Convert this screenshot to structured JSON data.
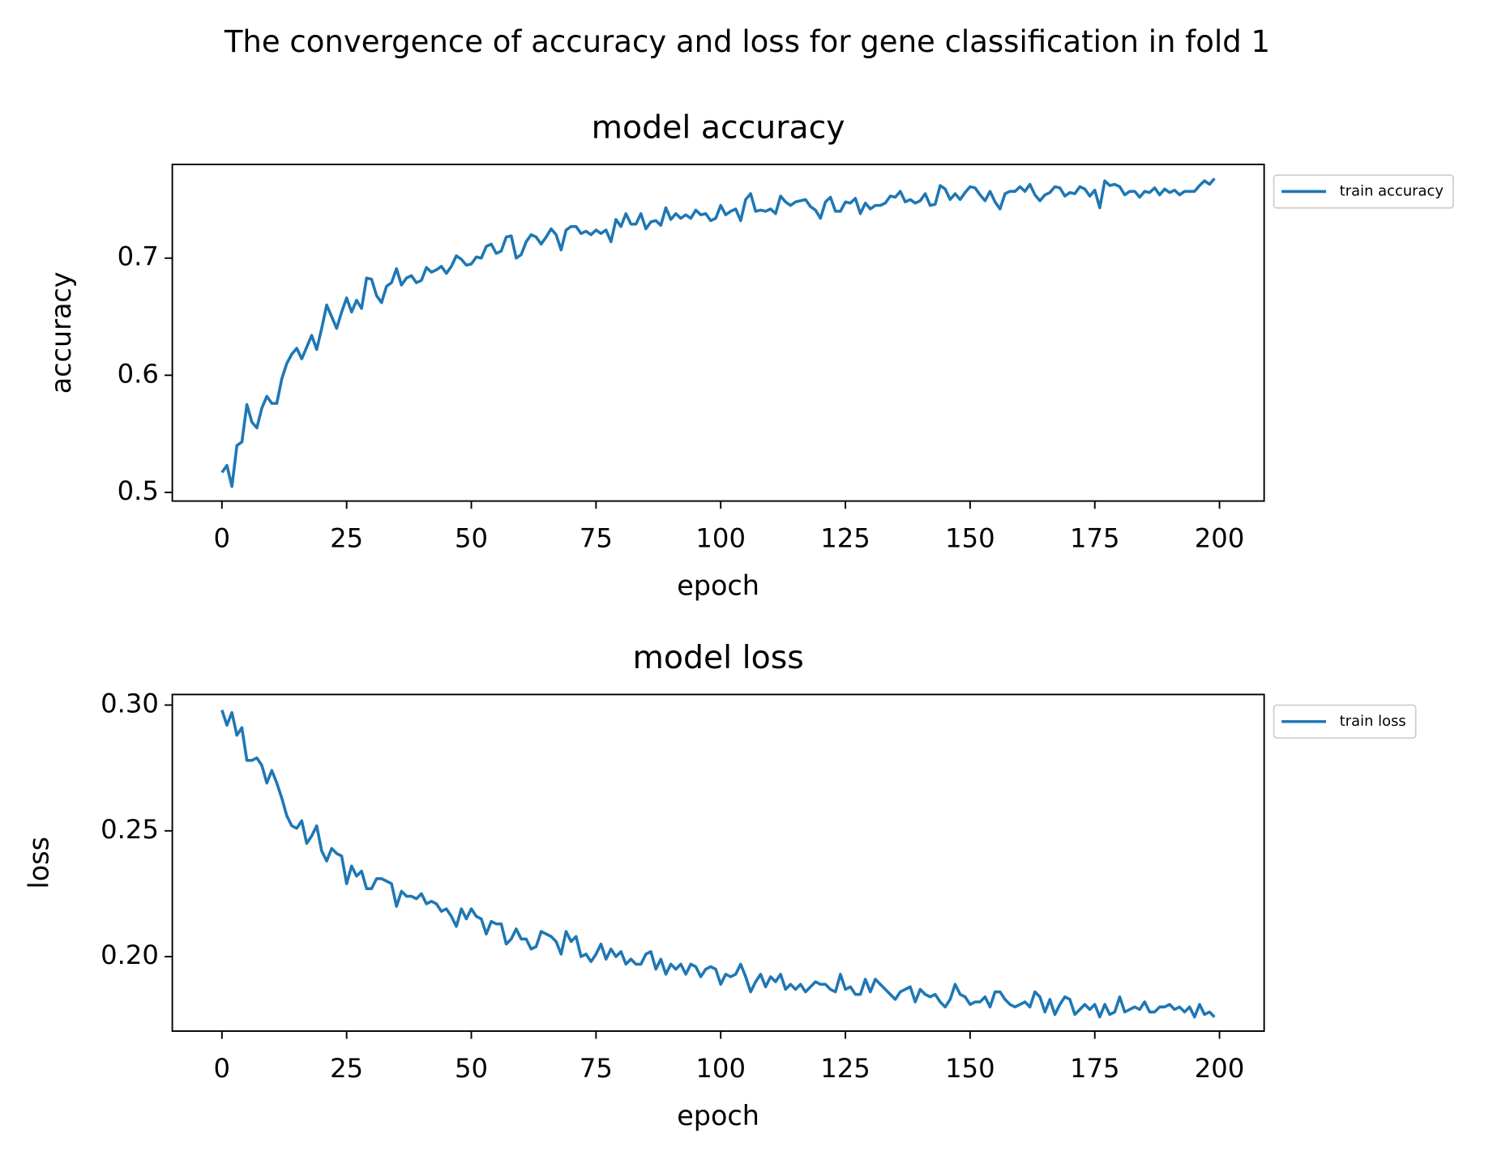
{
  "title": "The convergence of accuracy and loss for gene classification in fold 1",
  "chart_data": [
    {
      "type": "line",
      "title": "model accuracy",
      "xlabel": "epoch",
      "ylabel": "accuracy",
      "x": [
        0,
        1,
        2,
        3,
        4,
        5,
        6,
        7,
        8,
        9,
        10,
        11,
        12,
        13,
        14,
        15,
        16,
        17,
        18,
        19,
        20,
        21,
        22,
        23,
        24,
        25,
        26,
        27,
        28,
        29,
        30,
        31,
        32,
        33,
        34,
        35,
        36,
        37,
        38,
        39,
        40,
        41,
        42,
        43,
        44,
        45,
        46,
        47,
        48,
        49,
        50,
        51,
        52,
        53,
        54,
        55,
        56,
        57,
        58,
        59,
        60,
        61,
        62,
        63,
        64,
        65,
        66,
        67,
        68,
        69,
        70,
        71,
        72,
        73,
        74,
        75,
        76,
        77,
        78,
        79,
        80,
        81,
        82,
        83,
        84,
        85,
        86,
        87,
        88,
        89,
        90,
        91,
        92,
        93,
        94,
        95,
        96,
        97,
        98,
        99,
        100,
        101,
        102,
        103,
        104,
        105,
        106,
        107,
        108,
        109,
        110,
        111,
        112,
        113,
        114,
        115,
        116,
        117,
        118,
        119,
        120,
        121,
        122,
        123,
        124,
        125,
        126,
        127,
        128,
        129,
        130,
        131,
        132,
        133,
        134,
        135,
        136,
        137,
        138,
        139,
        140,
        141,
        142,
        143,
        144,
        145,
        146,
        147,
        148,
        149,
        150,
        151,
        152,
        153,
        154,
        155,
        156,
        157,
        158,
        159,
        160,
        161,
        162,
        163,
        164,
        165,
        166,
        167,
        168,
        169,
        170,
        171,
        172,
        173,
        174,
        175,
        176,
        177,
        178,
        179,
        180,
        181,
        182,
        183,
        184,
        185,
        186,
        187,
        188,
        189,
        190,
        191,
        192,
        193,
        194,
        195,
        196,
        197,
        198,
        199
      ],
      "series": [
        {
          "name": "train accuracy",
          "color": "#1f77b4",
          "values": [
            0.517,
            0.523,
            0.505,
            0.54,
            0.543,
            0.575,
            0.56,
            0.555,
            0.572,
            0.582,
            0.576,
            0.576,
            0.597,
            0.61,
            0.618,
            0.623,
            0.614,
            0.624,
            0.634,
            0.622,
            0.64,
            0.66,
            0.65,
            0.64,
            0.654,
            0.666,
            0.654,
            0.664,
            0.657,
            0.683,
            0.682,
            0.668,
            0.662,
            0.676,
            0.679,
            0.691,
            0.677,
            0.683,
            0.685,
            0.679,
            0.681,
            0.692,
            0.688,
            0.69,
            0.693,
            0.687,
            0.693,
            0.702,
            0.699,
            0.694,
            0.695,
            0.701,
            0.7,
            0.71,
            0.712,
            0.704,
            0.706,
            0.718,
            0.719,
            0.7,
            0.703,
            0.714,
            0.72,
            0.718,
            0.712,
            0.718,
            0.725,
            0.72,
            0.707,
            0.724,
            0.727,
            0.727,
            0.721,
            0.723,
            0.72,
            0.724,
            0.721,
            0.724,
            0.714,
            0.733,
            0.727,
            0.738,
            0.729,
            0.729,
            0.738,
            0.725,
            0.731,
            0.732,
            0.728,
            0.743,
            0.733,
            0.738,
            0.734,
            0.737,
            0.734,
            0.741,
            0.737,
            0.738,
            0.732,
            0.734,
            0.745,
            0.737,
            0.74,
            0.742,
            0.732,
            0.75,
            0.755,
            0.74,
            0.741,
            0.74,
            0.742,
            0.738,
            0.753,
            0.748,
            0.745,
            0.748,
            0.749,
            0.75,
            0.744,
            0.741,
            0.734,
            0.748,
            0.752,
            0.74,
            0.74,
            0.748,
            0.747,
            0.751,
            0.738,
            0.747,
            0.742,
            0.745,
            0.745,
            0.747,
            0.753,
            0.752,
            0.757,
            0.748,
            0.75,
            0.747,
            0.749,
            0.755,
            0.745,
            0.746,
            0.762,
            0.759,
            0.75,
            0.755,
            0.75,
            0.756,
            0.761,
            0.76,
            0.754,
            0.749,
            0.757,
            0.748,
            0.742,
            0.755,
            0.757,
            0.757,
            0.761,
            0.757,
            0.763,
            0.754,
            0.749,
            0.754,
            0.756,
            0.761,
            0.76,
            0.753,
            0.756,
            0.755,
            0.761,
            0.759,
            0.753,
            0.758,
            0.743,
            0.766,
            0.762,
            0.763,
            0.761,
            0.754,
            0.757,
            0.757,
            0.752,
            0.757,
            0.756,
            0.76,
            0.754,
            0.759,
            0.756,
            0.758,
            0.754,
            0.757,
            0.757,
            0.757,
            0.762,
            0.766,
            0.763,
            0.768
          ]
        }
      ],
      "xlim": [
        -9.95,
        208.95
      ],
      "xticks": [
        0,
        25,
        50,
        75,
        100,
        125,
        150,
        175,
        200
      ],
      "ylim": [
        0.4926,
        0.78
      ],
      "yticks": [
        0.5,
        0.6,
        0.7
      ],
      "legend": "outside upper right",
      "grid": false
    },
    {
      "type": "line",
      "title": "model loss",
      "xlabel": "epoch",
      "ylabel": "loss",
      "x": [
        0,
        1,
        2,
        3,
        4,
        5,
        6,
        7,
        8,
        9,
        10,
        11,
        12,
        13,
        14,
        15,
        16,
        17,
        18,
        19,
        20,
        21,
        22,
        23,
        24,
        25,
        26,
        27,
        28,
        29,
        30,
        31,
        32,
        33,
        34,
        35,
        36,
        37,
        38,
        39,
        40,
        41,
        42,
        43,
        44,
        45,
        46,
        47,
        48,
        49,
        50,
        51,
        52,
        53,
        54,
        55,
        56,
        57,
        58,
        59,
        60,
        61,
        62,
        63,
        64,
        65,
        66,
        67,
        68,
        69,
        70,
        71,
        72,
        73,
        74,
        75,
        76,
        77,
        78,
        79,
        80,
        81,
        82,
        83,
        84,
        85,
        86,
        87,
        88,
        89,
        90,
        91,
        92,
        93,
        94,
        95,
        96,
        97,
        98,
        99,
        100,
        101,
        102,
        103,
        104,
        105,
        106,
        107,
        108,
        109,
        110,
        111,
        112,
        113,
        114,
        115,
        116,
        117,
        118,
        119,
        120,
        121,
        122,
        123,
        124,
        125,
        126,
        127,
        128,
        129,
        130,
        131,
        132,
        133,
        134,
        135,
        136,
        137,
        138,
        139,
        140,
        141,
        142,
        143,
        144,
        145,
        146,
        147,
        148,
        149,
        150,
        151,
        152,
        153,
        154,
        155,
        156,
        157,
        158,
        159,
        160,
        161,
        162,
        163,
        164,
        165,
        166,
        167,
        168,
        169,
        170,
        171,
        172,
        173,
        174,
        175,
        176,
        177,
        178,
        179,
        180,
        181,
        182,
        183,
        184,
        185,
        186,
        187,
        188,
        189,
        190,
        191,
        192,
        193,
        194,
        195,
        196,
        197,
        198,
        199
      ],
      "series": [
        {
          "name": "train loss",
          "color": "#1f77b4",
          "values": [
            0.298,
            0.292,
            0.297,
            0.288,
            0.291,
            0.278,
            0.278,
            0.279,
            0.276,
            0.269,
            0.274,
            0.269,
            0.263,
            0.256,
            0.252,
            0.251,
            0.254,
            0.245,
            0.248,
            0.252,
            0.242,
            0.238,
            0.243,
            0.241,
            0.24,
            0.229,
            0.236,
            0.232,
            0.234,
            0.227,
            0.227,
            0.231,
            0.231,
            0.23,
            0.229,
            0.22,
            0.226,
            0.224,
            0.224,
            0.223,
            0.225,
            0.221,
            0.222,
            0.221,
            0.218,
            0.219,
            0.216,
            0.212,
            0.219,
            0.215,
            0.219,
            0.216,
            0.215,
            0.209,
            0.214,
            0.213,
            0.213,
            0.205,
            0.207,
            0.211,
            0.207,
            0.207,
            0.203,
            0.204,
            0.21,
            0.209,
            0.208,
            0.206,
            0.201,
            0.21,
            0.206,
            0.208,
            0.2,
            0.201,
            0.198,
            0.201,
            0.205,
            0.199,
            0.203,
            0.2,
            0.202,
            0.197,
            0.199,
            0.197,
            0.197,
            0.201,
            0.202,
            0.195,
            0.199,
            0.193,
            0.197,
            0.195,
            0.197,
            0.193,
            0.197,
            0.196,
            0.192,
            0.195,
            0.196,
            0.195,
            0.189,
            0.193,
            0.192,
            0.193,
            0.197,
            0.192,
            0.186,
            0.19,
            0.193,
            0.188,
            0.192,
            0.19,
            0.193,
            0.187,
            0.189,
            0.187,
            0.189,
            0.186,
            0.188,
            0.19,
            0.189,
            0.189,
            0.187,
            0.186,
            0.193,
            0.187,
            0.188,
            0.185,
            0.185,
            0.191,
            0.186,
            0.191,
            0.189,
            0.187,
            0.185,
            0.183,
            0.186,
            0.187,
            0.188,
            0.182,
            0.187,
            0.185,
            0.184,
            0.185,
            0.182,
            0.18,
            0.183,
            0.189,
            0.185,
            0.184,
            0.181,
            0.182,
            0.182,
            0.184,
            0.18,
            0.186,
            0.186,
            0.183,
            0.181,
            0.18,
            0.181,
            0.182,
            0.18,
            0.186,
            0.184,
            0.178,
            0.183,
            0.177,
            0.181,
            0.184,
            0.183,
            0.177,
            0.179,
            0.181,
            0.179,
            0.181,
            0.176,
            0.181,
            0.177,
            0.178,
            0.184,
            0.178,
            0.179,
            0.18,
            0.179,
            0.182,
            0.178,
            0.178,
            0.18,
            0.18,
            0.181,
            0.179,
            0.18,
            0.178,
            0.18,
            0.176,
            0.181,
            0.177,
            0.178,
            0.176
          ]
        }
      ],
      "xlim": [
        -9.95,
        208.95
      ],
      "xticks": [
        0,
        25,
        50,
        75,
        100,
        125,
        150,
        175,
        200
      ],
      "ylim": [
        0.1704,
        0.3042
      ],
      "yticks": [
        {
          "value": 0.2,
          "label": "0.20"
        },
        0.25,
        {
          "value": 0.3,
          "label": "0.30"
        }
      ],
      "legend": "outside upper right",
      "grid": false
    }
  ]
}
